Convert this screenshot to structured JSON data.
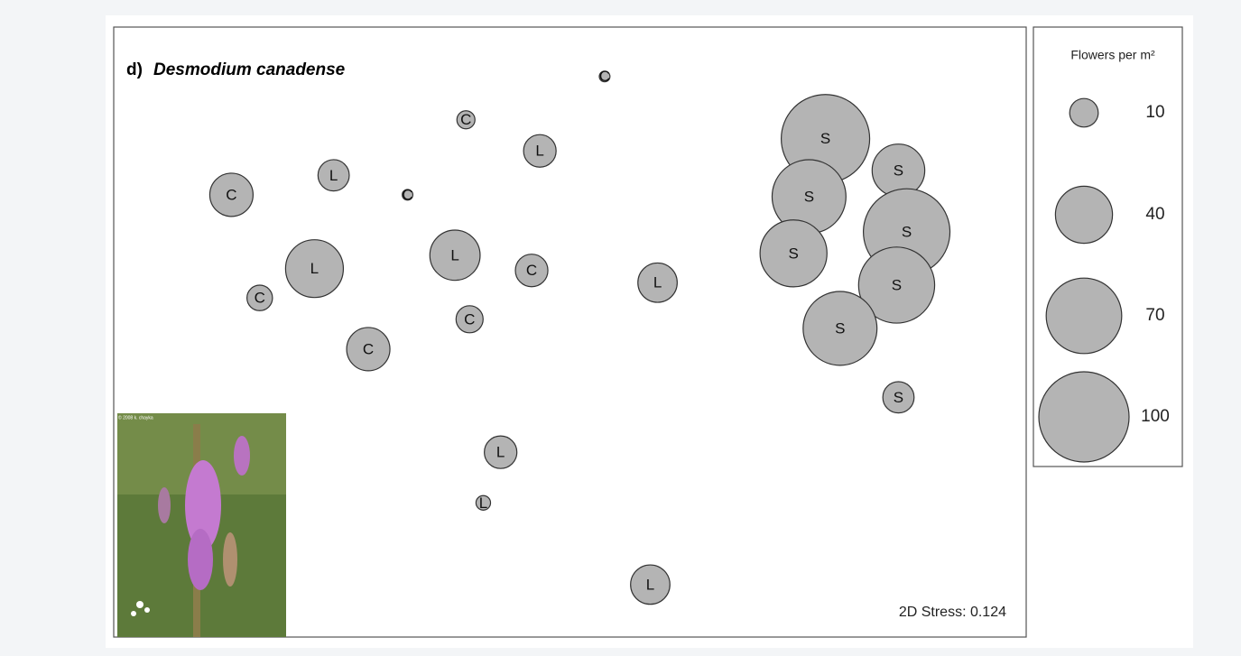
{
  "chart_data": {
    "type": "bubble",
    "panel": "d)",
    "title": "Desmodium canadense",
    "annotation": "2D Stress: 0.124",
    "photo_credit": "© 2008 k. chayka",
    "x": [
      53.8,
      38.6,
      46.7,
      24.1,
      12.9,
      32.2,
      22.0,
      37.4,
      45.8,
      16.0,
      39.0,
      27.9,
      59.6,
      42.4,
      40.5,
      58.8,
      78.0,
      86.0,
      76.2,
      86.9,
      74.5,
      85.8,
      79.6,
      86.0
    ],
    "y": [
      91.9,
      84.8,
      79.7,
      75.7,
      72.5,
      72.5,
      60.4,
      62.6,
      60.1,
      55.6,
      52.1,
      47.2,
      58.1,
      30.3,
      22.0,
      8.6,
      81.7,
      76.5,
      72.2,
      66.4,
      62.9,
      57.7,
      50.6,
      39.3
    ],
    "sizes": [
      1.4,
      4,
      13,
      12,
      23,
      1.4,
      41,
      31,
      13,
      8,
      9,
      23,
      19,
      13,
      2.6,
      19,
      96,
      34,
      67,
      92,
      55,
      71,
      67,
      12
    ],
    "labels": [
      "C",
      "C",
      "L",
      "L",
      "C",
      "C",
      "L",
      "L",
      "C",
      "C",
      "C",
      "C",
      "L",
      "L",
      "L",
      "L",
      "S",
      "S",
      "S",
      "S",
      "S",
      "S",
      "S",
      "S"
    ],
    "xlim": [
      0,
      100
    ],
    "ylim": [
      0,
      100
    ],
    "color": "#b4b4b4",
    "legend": {
      "title": "Flowers per m²",
      "sizes": [
        10,
        40,
        70,
        100
      ]
    }
  }
}
